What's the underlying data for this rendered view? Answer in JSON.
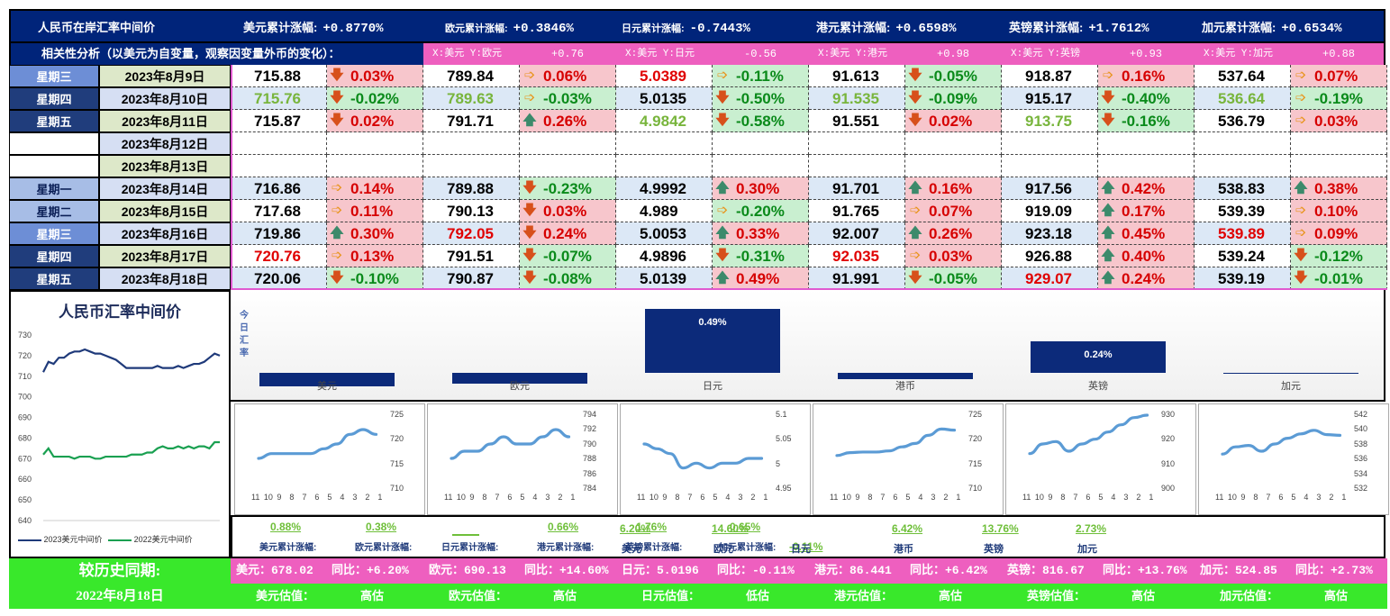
{
  "header": {
    "title": "人民币在岸汇率中间价",
    "items": [
      {
        "label": "美元累计涨幅:",
        "value": "+0.8770%"
      },
      {
        "label": "欧元累计涨幅:",
        "value": "+0.3846%"
      },
      {
        "label": "日元累计涨幅:",
        "value": "-0.7443%"
      },
      {
        "label": "港元累计涨幅:",
        "value": "+0.6598%"
      },
      {
        "label": "英镑累计涨幅:",
        "value": "+1.7612%"
      },
      {
        "label": "加元累计涨幅:",
        "value": "+0.6534%"
      }
    ]
  },
  "correlation": {
    "title": "相关性分析（以美元为自变量，观察因变量外币的变化）：",
    "items": [
      {
        "label": "X:美元  Y:欧元",
        "value": "+0.76"
      },
      {
        "label": "X:美元  Y:日元",
        "value": "-0.56"
      },
      {
        "label": "X:美元  Y:港元",
        "value": "+0.98"
      },
      {
        "label": "X:美元  Y:英镑",
        "value": "+0.93"
      },
      {
        "label": "X:美元  Y:加元",
        "value": "+0.88"
      }
    ]
  },
  "rows": [
    {
      "day": "星期三",
      "date": "2023年8月9日",
      "cells": [
        [
          "715.88",
          "0.03%",
          "down",
          "up",
          ""
        ],
        [
          "789.84",
          "0.06%",
          "right",
          "up",
          ""
        ],
        [
          "5.0389",
          "-0.11%",
          "right",
          "dn",
          "r"
        ],
        [
          "91.613",
          "-0.05%",
          "down",
          "dn",
          ""
        ],
        [
          "918.87",
          "0.16%",
          "right",
          "up",
          ""
        ],
        [
          "537.64",
          "0.07%",
          "right",
          "up",
          ""
        ]
      ]
    },
    {
      "day": "星期四",
      "date": "2023年8月10日",
      "cells": [
        [
          "715.76",
          "-0.02%",
          "down",
          "dn",
          "g"
        ],
        [
          "789.63",
          "-0.03%",
          "right",
          "dn",
          "g"
        ],
        [
          "5.0135",
          "-0.50%",
          "down",
          "dn",
          ""
        ],
        [
          "91.535",
          "-0.09%",
          "down",
          "dn",
          "g"
        ],
        [
          "915.17",
          "-0.40%",
          "down",
          "dn",
          ""
        ],
        [
          "536.64",
          "-0.19%",
          "right",
          "dn",
          "g"
        ]
      ]
    },
    {
      "day": "星期五",
      "date": "2023年8月11日",
      "cells": [
        [
          "715.87",
          "0.02%",
          "down",
          "up",
          ""
        ],
        [
          "791.71",
          "0.26%",
          "up",
          "up",
          ""
        ],
        [
          "4.9842",
          "-0.58%",
          "down",
          "dn",
          "g"
        ],
        [
          "91.551",
          "0.02%",
          "down",
          "up",
          ""
        ],
        [
          "913.75",
          "-0.16%",
          "down",
          "dn",
          "g"
        ],
        [
          "536.79",
          "0.03%",
          "right",
          "up",
          ""
        ]
      ]
    },
    {
      "day": "",
      "date": "2023年8月12日",
      "cells": []
    },
    {
      "day": "",
      "date": "2023年8月13日",
      "cells": []
    },
    {
      "day": "星期一",
      "date": "2023年8月14日",
      "cells": [
        [
          "716.86",
          "0.14%",
          "right",
          "up",
          ""
        ],
        [
          "789.88",
          "-0.23%",
          "down",
          "dn",
          ""
        ],
        [
          "4.9992",
          "0.30%",
          "up",
          "up",
          ""
        ],
        [
          "91.701",
          "0.16%",
          "up",
          "up",
          ""
        ],
        [
          "917.56",
          "0.42%",
          "up",
          "up",
          ""
        ],
        [
          "538.83",
          "0.38%",
          "up",
          "up",
          ""
        ]
      ]
    },
    {
      "day": "星期二",
      "date": "2023年8月15日",
      "cells": [
        [
          "717.68",
          "0.11%",
          "right",
          "up",
          ""
        ],
        [
          "790.13",
          "0.03%",
          "down",
          "up",
          ""
        ],
        [
          "4.989",
          "-0.20%",
          "right",
          "dn",
          ""
        ],
        [
          "91.765",
          "0.07%",
          "right",
          "up",
          ""
        ],
        [
          "919.09",
          "0.17%",
          "up",
          "up",
          ""
        ],
        [
          "539.39",
          "0.10%",
          "right",
          "up",
          ""
        ]
      ]
    },
    {
      "day": "星期三",
      "date": "2023年8月16日",
      "cells": [
        [
          "719.86",
          "0.30%",
          "up",
          "up",
          ""
        ],
        [
          "792.05",
          "0.24%",
          "down",
          "up",
          "r"
        ],
        [
          "5.0053",
          "0.33%",
          "up",
          "up",
          ""
        ],
        [
          "92.007",
          "0.26%",
          "up",
          "up",
          ""
        ],
        [
          "923.18",
          "0.45%",
          "up",
          "up",
          ""
        ],
        [
          "539.89",
          "0.09%",
          "right",
          "up",
          "r"
        ]
      ]
    },
    {
      "day": "星期四",
      "date": "2023年8月17日",
      "cells": [
        [
          "720.76",
          "0.13%",
          "right",
          "up",
          "r"
        ],
        [
          "791.51",
          "-0.07%",
          "down",
          "dn",
          ""
        ],
        [
          "4.9896",
          "-0.31%",
          "down",
          "dn",
          ""
        ],
        [
          "92.035",
          "0.03%",
          "right",
          "up",
          "r"
        ],
        [
          "926.88",
          "0.40%",
          "up",
          "up",
          ""
        ],
        [
          "539.24",
          "-0.12%",
          "down",
          "dn",
          ""
        ]
      ]
    },
    {
      "day": "星期五",
      "date": "2023年8月18日",
      "cells": [
        [
          "720.06",
          "-0.10%",
          "down",
          "dn",
          ""
        ],
        [
          "790.87",
          "-0.08%",
          "down",
          "dn",
          ""
        ],
        [
          "5.0139",
          "0.49%",
          "up",
          "up",
          ""
        ],
        [
          "91.991",
          "-0.05%",
          "down",
          "dn",
          ""
        ],
        [
          "929.07",
          "0.24%",
          "up",
          "up",
          "r"
        ],
        [
          "539.19",
          "-0.01%",
          "down",
          "dn",
          ""
        ]
      ]
    }
  ],
  "left_chart": {
    "title": "人民币汇率中间价",
    "legend": [
      "2023美元中间价",
      "2022美元中间价"
    ]
  },
  "bar_chart": {
    "side_label": "今日汇率",
    "categories": [
      "美元",
      "欧元",
      "日元",
      "港币",
      "英镑",
      "加元"
    ],
    "labels": [
      "",
      "",
      "0.49%",
      "",
      "0.24%",
      ""
    ]
  },
  "mini_charts": [
    {
      "yticks": [
        "725",
        "720",
        "715",
        "710"
      ]
    },
    {
      "yticks": [
        "794",
        "792",
        "790",
        "788",
        "786",
        "784"
      ]
    },
    {
      "yticks": [
        "5.1",
        "5.05",
        "5",
        "4.95"
      ]
    },
    {
      "yticks": [
        "725",
        "720",
        "715",
        "710"
      ]
    },
    {
      "yticks": [
        "930",
        "920",
        "910",
        "900"
      ]
    },
    {
      "yticks": [
        "542",
        "540",
        "538",
        "536",
        "534",
        "532"
      ]
    }
  ],
  "mini_xticks": "11 10 9  8  7  6  5  4  3  2  1",
  "cumulative": {
    "items": [
      {
        "value": "0.88%",
        "label": "美元累计涨幅:"
      },
      {
        "value": "0.38%",
        "label": "欧元累计涨幅:"
      },
      {
        "value": "",
        "label": "日元累计涨幅:"
      },
      {
        "value": "0.66%",
        "label": "港元累计涨幅:"
      },
      {
        "value": "1.76%",
        "label": "英镑累计涨幅:"
      },
      {
        "value": "0.65%",
        "label": "加元累计涨幅:"
      }
    ],
    "yoy": [
      {
        "value": "6.20%",
        "label": "美元"
      },
      {
        "value": "14.60%",
        "label": "欧元"
      },
      {
        "value": "-0.11%",
        "label": "日元"
      },
      {
        "value": "6.42%",
        "label": "港币"
      },
      {
        "value": "13.76%",
        "label": "英镑"
      },
      {
        "value": "2.73%",
        "label": "加元"
      }
    ]
  },
  "history": {
    "title": "较历史同期:",
    "date": "2022年8月18日",
    "items": [
      {
        "cur": "美元：678.02",
        "yoy": "同比：+6.20%",
        "est_label": "美元估值：",
        "est": "高估"
      },
      {
        "cur": "欧元：690.13",
        "yoy": "同比：+14.60%",
        "est_label": "欧元估值：",
        "est": "高估"
      },
      {
        "cur": "日元：5.0196",
        "yoy": "同比：-0.11%",
        "est_label": "日元估值：",
        "est": "低估"
      },
      {
        "cur": "港元：86.441",
        "yoy": "同比：+6.42%",
        "est_label": "港元估值：",
        "est": "高估"
      },
      {
        "cur": "英镑：816.67",
        "yoy": "同比：+13.76%",
        "est_label": "英镑估值：",
        "est": "高估"
      },
      {
        "cur": "加元：524.85",
        "yoy": "同比：+2.73%",
        "est_label": "加元估值：",
        "est": "高估"
      }
    ]
  },
  "chart_data": {
    "type": "line",
    "title": "人民币汇率中间价",
    "ylim": [
      640,
      730
    ],
    "series": [
      {
        "name": "2023美元中间价",
        "values": [
          712,
          717,
          716,
          719,
          719,
          721,
          722,
          722,
          723,
          722,
          721,
          721,
          720,
          719,
          718,
          716,
          714,
          714,
          714,
          714,
          714,
          714,
          715,
          714,
          714,
          714,
          715,
          714,
          715,
          716,
          716,
          717,
          719,
          721,
          720
        ]
      },
      {
        "name": "2022美元中间价",
        "values": [
          672,
          675,
          671,
          671,
          671,
          671,
          670,
          671,
          671,
          671,
          670,
          670,
          671,
          671,
          671,
          671,
          671,
          672,
          672,
          672,
          673,
          673,
          675,
          676,
          675,
          675,
          676,
          675,
          676,
          675,
          676,
          676,
          675,
          678,
          678
        ]
      }
    ]
  }
}
